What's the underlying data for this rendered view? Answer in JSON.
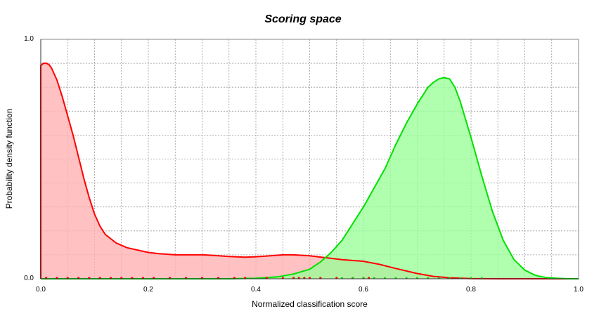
{
  "chart_data": {
    "type": "area",
    "title": "Scoring space",
    "xlabel": "Normalized classification score",
    "ylabel": "Probability density function",
    "xlim": [
      0.0,
      1.0
    ],
    "ylim": [
      0.0,
      1.0
    ],
    "x_ticks": [
      "0.0",
      "0.2",
      "0.4",
      "0.6",
      "0.8",
      "1.0"
    ],
    "y_ticks": [
      "0.0",
      "1.0"
    ],
    "grid": true,
    "series": [
      {
        "color": "#ff0000",
        "fill": "#ffb0b0",
        "x": [
          0.0,
          0.0,
          0.005,
          0.01,
          0.015,
          0.02,
          0.03,
          0.04,
          0.05,
          0.06,
          0.07,
          0.08,
          0.09,
          0.1,
          0.11,
          0.12,
          0.14,
          0.16,
          0.18,
          0.2,
          0.22,
          0.25,
          0.28,
          0.3,
          0.32,
          0.35,
          0.38,
          0.4,
          0.42,
          0.45,
          0.47,
          0.5,
          0.53,
          0.56,
          0.6,
          0.63,
          0.66,
          0.7,
          0.73,
          0.76,
          0.8,
          0.85,
          0.9,
          0.95,
          1.0
        ],
        "y": [
          0.0,
          0.89,
          0.9,
          0.9,
          0.895,
          0.88,
          0.83,
          0.76,
          0.68,
          0.6,
          0.51,
          0.42,
          0.34,
          0.27,
          0.22,
          0.185,
          0.15,
          0.13,
          0.12,
          0.11,
          0.105,
          0.1,
          0.1,
          0.1,
          0.098,
          0.093,
          0.09,
          0.092,
          0.095,
          0.1,
          0.1,
          0.096,
          0.088,
          0.08,
          0.073,
          0.06,
          0.043,
          0.022,
          0.01,
          0.004,
          0.001,
          0.0,
          0.0,
          0.0,
          0.0
        ]
      },
      {
        "color": "#00e000",
        "fill": "#99ff99",
        "x": [
          0.0,
          0.35,
          0.4,
          0.44,
          0.47,
          0.5,
          0.52,
          0.54,
          0.56,
          0.58,
          0.6,
          0.62,
          0.64,
          0.66,
          0.68,
          0.7,
          0.72,
          0.73,
          0.74,
          0.75,
          0.76,
          0.77,
          0.78,
          0.8,
          0.82,
          0.84,
          0.86,
          0.88,
          0.9,
          0.92,
          0.94,
          0.96,
          0.98,
          1.0
        ],
        "y": [
          0.0,
          0.0,
          0.002,
          0.008,
          0.02,
          0.04,
          0.07,
          0.11,
          0.16,
          0.23,
          0.3,
          0.38,
          0.46,
          0.56,
          0.65,
          0.73,
          0.8,
          0.82,
          0.835,
          0.84,
          0.835,
          0.8,
          0.74,
          0.59,
          0.43,
          0.28,
          0.16,
          0.08,
          0.036,
          0.014,
          0.005,
          0.002,
          0.0,
          0.0
        ]
      }
    ]
  }
}
